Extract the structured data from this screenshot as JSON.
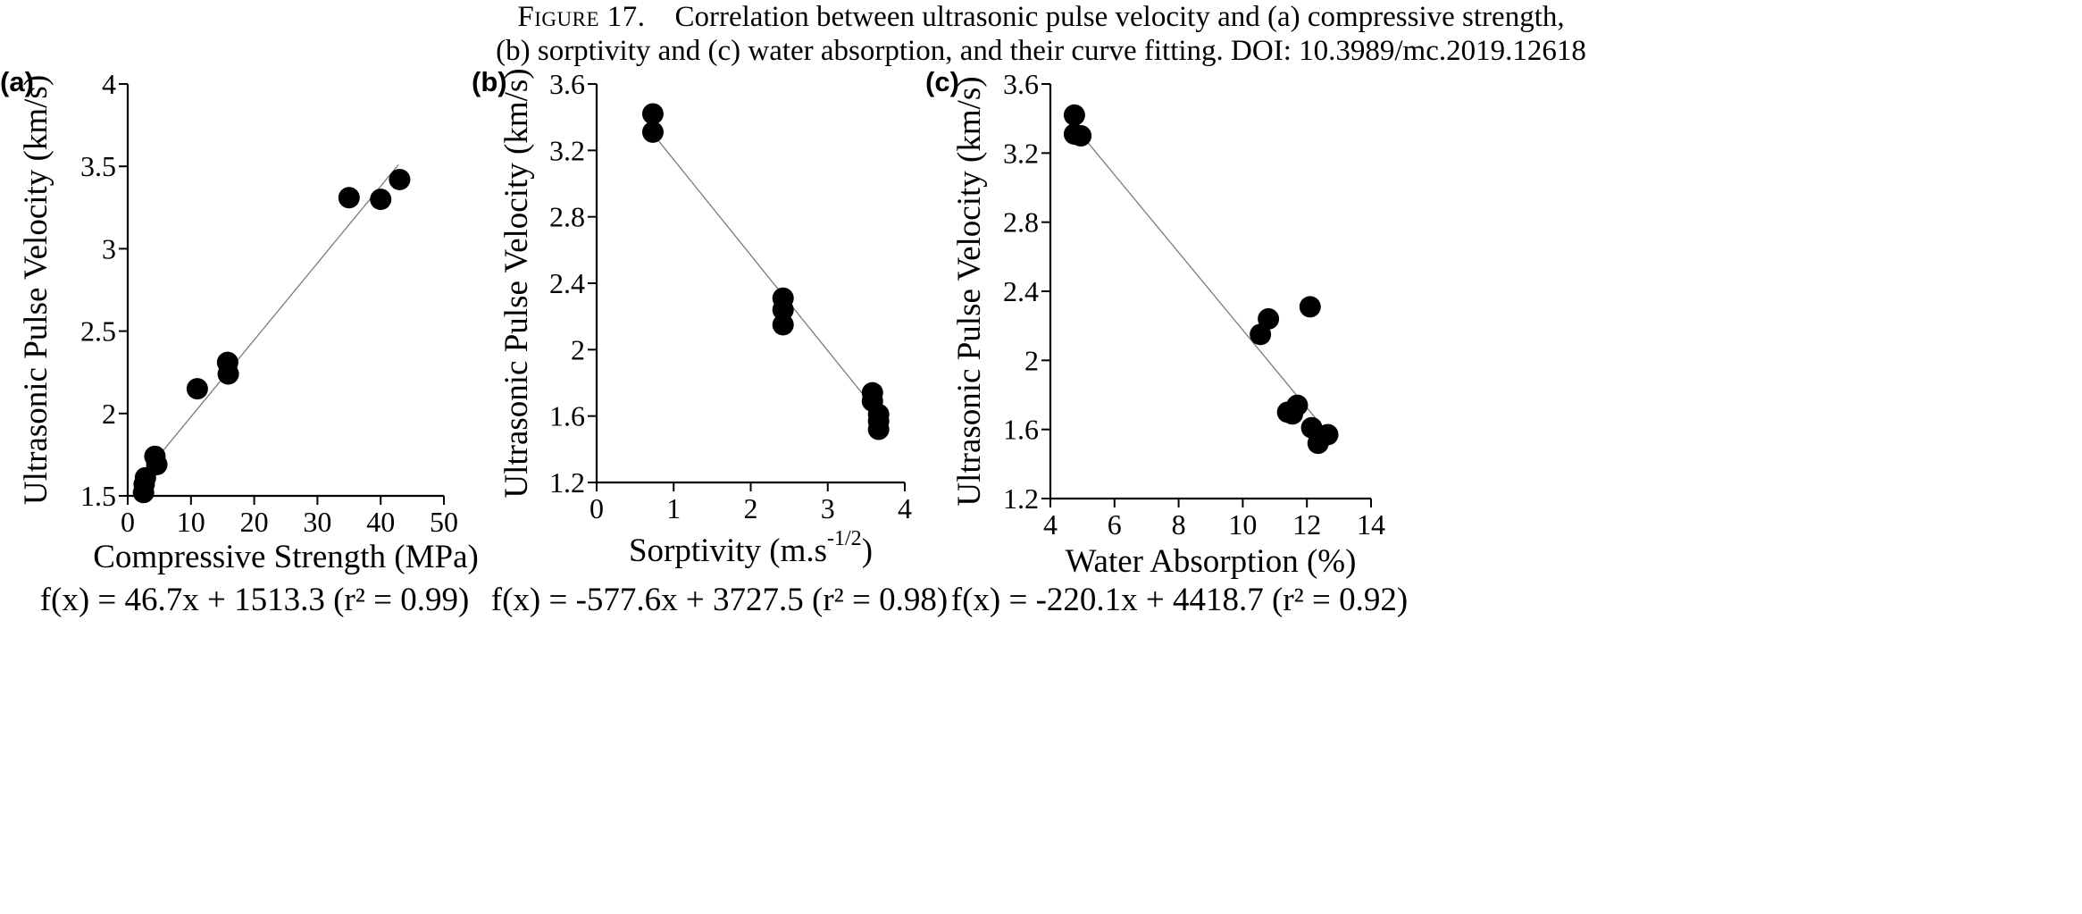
{
  "caption": {
    "label": "Figure 17.",
    "line1": "Correlation between ultrasonic pulse velocity and (a) compressive strength,",
    "line2": "(b) sorptivity and (c) water absorption, and their curve fitting. DOI: 10.3989/mc.2019.12618"
  },
  "chart_data": [
    {
      "type": "scatter",
      "panel": "(a)",
      "xlabel": "Compressive Strength (MPa)",
      "ylabel": "Ultrasonic Pulse Velocity (km/s)",
      "xlim": [
        0,
        50
      ],
      "ylim": [
        1.5,
        4
      ],
      "xticks": [
        "0",
        "10",
        "20",
        "30",
        "40",
        "50"
      ],
      "yticks": [
        "1.5",
        "2",
        "2.5",
        "3",
        "3.5",
        "4"
      ],
      "xtick_values": [
        0,
        10,
        20,
        30,
        40,
        50
      ],
      "ytick_values": [
        1.5,
        2,
        2.5,
        3,
        3.5,
        4
      ],
      "points": [
        [
          2.5,
          1.52
        ],
        [
          2.6,
          1.57
        ],
        [
          2.8,
          1.61
        ],
        [
          4.3,
          1.74
        ],
        [
          4.6,
          1.69
        ],
        [
          11.0,
          2.15
        ],
        [
          15.8,
          2.31
        ],
        [
          15.9,
          2.24
        ],
        [
          35.0,
          3.31
        ],
        [
          40.0,
          3.3
        ],
        [
          43.0,
          3.42
        ]
      ],
      "fit_line": {
        "x": [
          4.0,
          42.8
        ],
        "y": [
          1.7,
          3.51
        ]
      },
      "equation": "f(x) = 46.7x + 1513.3 (r² = 0.99)"
    },
    {
      "type": "scatter",
      "panel": "(b)",
      "xlabel": "Sorptivity (m.s",
      "xlabel_sup": "-1/2",
      "xlabel_end": ")",
      "ylabel": "Ultrasonic Pulse Velocity (km/s)",
      "xlim": [
        0,
        4
      ],
      "ylim": [
        1.2,
        3.6
      ],
      "xticks": [
        "0",
        "1",
        "2",
        "3",
        "4"
      ],
      "yticks": [
        "1.2",
        "1.6",
        "2",
        "2.4",
        "2.8",
        "3.2",
        "3.6"
      ],
      "xtick_values": [
        0,
        1,
        2,
        3,
        4
      ],
      "ytick_values": [
        1.2,
        1.6,
        2.0,
        2.4,
        2.8,
        3.2,
        3.6
      ],
      "points": [
        [
          0.73,
          3.42
        ],
        [
          0.73,
          3.31
        ],
        [
          2.42,
          2.31
        ],
        [
          2.42,
          2.24
        ],
        [
          2.42,
          2.15
        ],
        [
          3.58,
          1.74
        ],
        [
          3.58,
          1.69
        ],
        [
          3.66,
          1.61
        ],
        [
          3.66,
          1.57
        ],
        [
          3.66,
          1.52
        ]
      ],
      "fit_line": {
        "x": [
          0.73,
          3.58
        ],
        "y": [
          3.3,
          1.66
        ]
      },
      "equation": "f(x) = -577.6x + 3727.5 (r² = 0.98)"
    },
    {
      "type": "scatter",
      "panel": "(c)",
      "xlabel": "Water Absorption (%)",
      "ylabel": "Ultrasonic Pulse Velocity (km/s)",
      "xlim": [
        4,
        14
      ],
      "ylim": [
        1.2,
        3.6
      ],
      "xticks": [
        "4",
        "6",
        "8",
        "10",
        "12",
        "14"
      ],
      "yticks": [
        "1.2",
        "1.6",
        "2",
        "2.4",
        "2.8",
        "3.2",
        "3.6"
      ],
      "xtick_values": [
        4,
        6,
        8,
        10,
        12,
        14
      ],
      "ytick_values": [
        1.2,
        1.6,
        2.0,
        2.4,
        2.8,
        3.2,
        3.6
      ],
      "points": [
        [
          4.75,
          3.42
        ],
        [
          4.75,
          3.31
        ],
        [
          4.95,
          3.3
        ],
        [
          10.55,
          2.15
        ],
        [
          10.8,
          2.24
        ],
        [
          12.1,
          2.31
        ],
        [
          11.4,
          1.7
        ],
        [
          11.55,
          1.69
        ],
        [
          11.7,
          1.74
        ],
        [
          12.15,
          1.61
        ],
        [
          12.35,
          1.52
        ],
        [
          12.65,
          1.57
        ]
      ],
      "fit_line": {
        "x": [
          4.95,
          12.65
        ],
        "y": [
          3.31,
          1.58
        ]
      },
      "equation": "f(x) = -220.1x + 4418.7 (r² = 0.92)"
    }
  ]
}
